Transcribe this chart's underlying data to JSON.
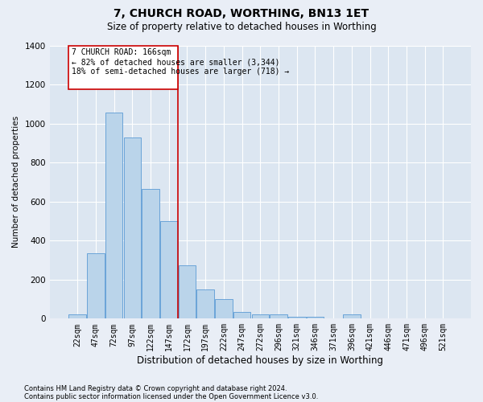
{
  "title": "7, CHURCH ROAD, WORTHING, BN13 1ET",
  "subtitle": "Size of property relative to detached houses in Worthing",
  "xlabel": "Distribution of detached houses by size in Worthing",
  "ylabel": "Number of detached properties",
  "footnote1": "Contains HM Land Registry data © Crown copyright and database right 2024.",
  "footnote2": "Contains public sector information licensed under the Open Government Licence v3.0.",
  "annotation_line1": "7 CHURCH ROAD: 166sqm",
  "annotation_line2": "← 82% of detached houses are smaller (3,344)",
  "annotation_line3": "18% of semi-detached houses are larger (718) →",
  "categories": [
    "22sqm",
    "47sqm",
    "72sqm",
    "97sqm",
    "122sqm",
    "147sqm",
    "172sqm",
    "197sqm",
    "222sqm",
    "247sqm",
    "272sqm",
    "296sqm",
    "321sqm",
    "346sqm",
    "371sqm",
    "396sqm",
    "421sqm",
    "446sqm",
    "471sqm",
    "496sqm",
    "521sqm"
  ],
  "values": [
    20,
    335,
    1055,
    930,
    665,
    500,
    275,
    150,
    100,
    35,
    20,
    20,
    10,
    10,
    0,
    20,
    0,
    0,
    0,
    0,
    0
  ],
  "bar_color": "#bad4ea",
  "bar_edge_color": "#5b9bd5",
  "red_line_color": "#cc0000",
  "background_color": "#e9eef6",
  "plot_bg_color": "#dce6f1",
  "ylim": [
    0,
    1400
  ],
  "yticks": [
    0,
    200,
    400,
    600,
    800,
    1000,
    1200,
    1400
  ],
  "annotation_box_color": "#ffffff",
  "annotation_box_edge": "#cc0000",
  "grid_color": "#ffffff",
  "title_fontsize": 10,
  "subtitle_fontsize": 8.5,
  "tick_fontsize": 7,
  "ylabel_fontsize": 7.5,
  "xlabel_fontsize": 8.5
}
